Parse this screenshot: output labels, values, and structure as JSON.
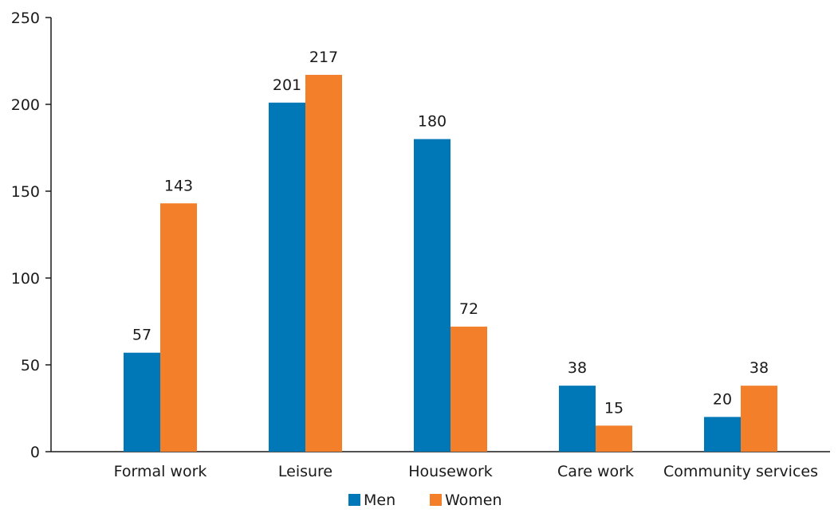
{
  "chart_data": {
    "type": "bar",
    "title": "",
    "xlabel": "",
    "ylabel": "",
    "ylim": [
      0,
      250
    ],
    "yticks": [
      0,
      50,
      100,
      150,
      200,
      250
    ],
    "categories": [
      "Formal work",
      "Leisure",
      "Housework",
      "Care work",
      "Community services"
    ],
    "series": [
      {
        "name": "Men",
        "color": "#0077b6",
        "values": [
          57,
          201,
          180,
          38,
          20
        ]
      },
      {
        "name": "Women",
        "color": "#f37f2b",
        "values": [
          143,
          217,
          72,
          15,
          38
        ]
      }
    ],
    "grid": false,
    "legend": "bottom-center",
    "data_labels": true
  }
}
